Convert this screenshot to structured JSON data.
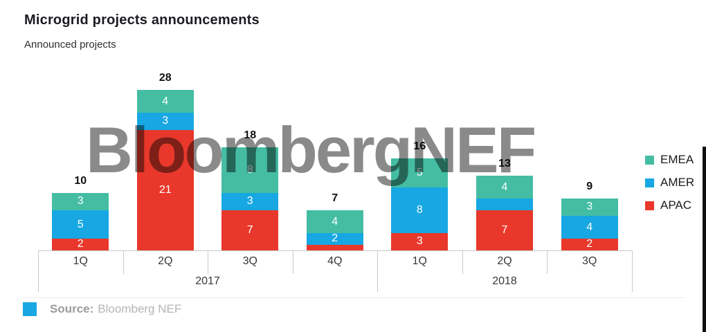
{
  "header": {
    "title": "Microgrid projects announcements",
    "subtitle": "Announced projects"
  },
  "watermark": {
    "text": "BloombergNEF"
  },
  "source": {
    "label": "Source:",
    "value": "Bloomberg NEF",
    "swatch_color": "#18a7e2"
  },
  "chart_data": {
    "type": "bar",
    "stacked": true,
    "title": "Microgrid projects announcements",
    "subtitle": "Announced projects",
    "categories": [
      "1Q",
      "2Q",
      "3Q",
      "4Q",
      "1Q",
      "2Q",
      "3Q"
    ],
    "groups": [
      {
        "label": "2017",
        "span": 4
      },
      {
        "label": "2018",
        "span": 3
      }
    ],
    "series": [
      {
        "name": "APAC",
        "color": "#e9382b",
        "values": [
          2,
          21,
          7,
          1,
          3,
          7,
          2
        ],
        "data_labels": [
          "2",
          "21",
          "7",
          "",
          "3",
          "7",
          "2"
        ]
      },
      {
        "name": "AMER",
        "color": "#17a7e2",
        "values": [
          5,
          3,
          3,
          2,
          8,
          2,
          4
        ],
        "data_labels": [
          "5",
          "3",
          "3",
          "2",
          "8",
          "",
          "4"
        ]
      },
      {
        "name": "EMEA",
        "color": "#44bda3",
        "values": [
          3,
          4,
          8,
          4,
          5,
          4,
          3
        ],
        "data_labels": [
          "3",
          "4",
          "8",
          "4",
          "5",
          "4",
          "3"
        ]
      }
    ],
    "totals": [
      "10",
      "28",
      "18",
      "7",
      "16",
      "13",
      "9"
    ],
    "legend": {
      "position": "right",
      "order": [
        "EMEA",
        "AMER",
        "APAC"
      ]
    },
    "ylim": [
      0,
      30
    ],
    "grid": false,
    "y_axis_visible": false
  }
}
